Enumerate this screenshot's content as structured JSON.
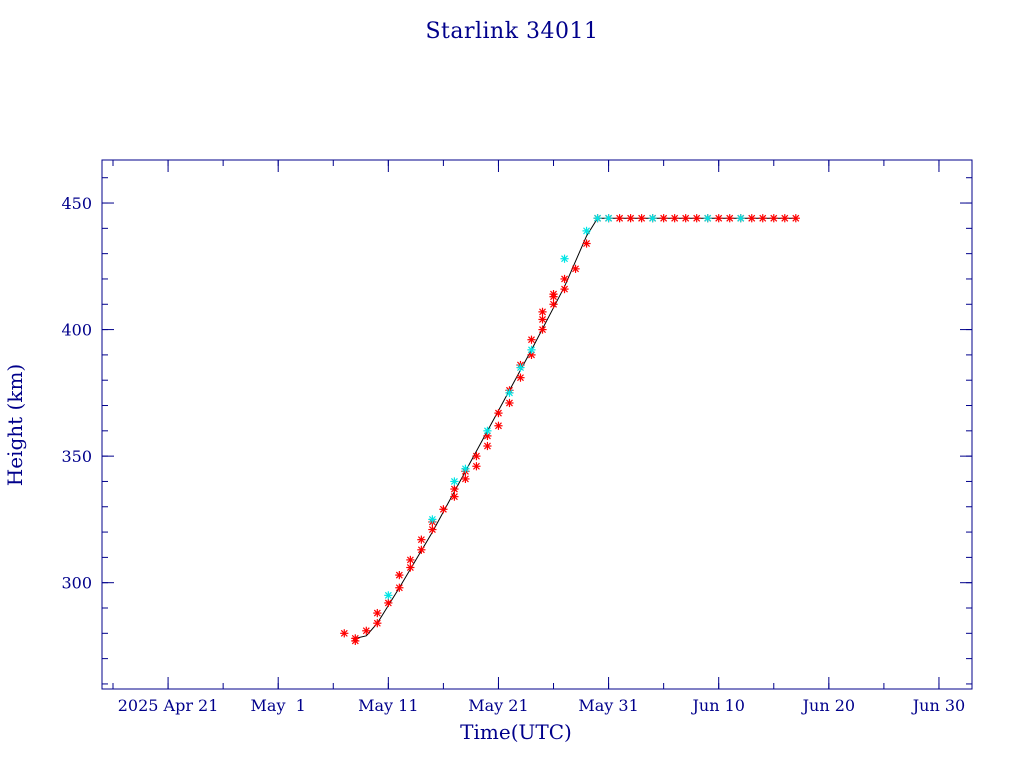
{
  "chart_data": {
    "type": "scatter",
    "title": "Starlink 34011",
    "xlabel": "Time(UTC)",
    "ylabel": "Height (km)",
    "x_axis_type": "date",
    "xlim": [
      "2025-04-15",
      "2025-07-03"
    ],
    "ylim": [
      258,
      467
    ],
    "x_ticks": [
      {
        "date": "2025-04-21",
        "label": "2025 Apr 21"
      },
      {
        "date": "2025-05-01",
        "label": "May  1"
      },
      {
        "date": "2025-05-11",
        "label": "May 11"
      },
      {
        "date": "2025-05-21",
        "label": "May 21"
      },
      {
        "date": "2025-05-31",
        "label": "May 31"
      },
      {
        "date": "2025-06-10",
        "label": "Jun 10"
      },
      {
        "date": "2025-06-20",
        "label": "Jun 20"
      },
      {
        "date": "2025-06-30",
        "label": "Jun 30"
      }
    ],
    "y_ticks": [
      300,
      350,
      400,
      450
    ],
    "grid": false,
    "legend": "none",
    "colors": {
      "text": "#00008b",
      "frame": "#00008b",
      "line": "#000000",
      "marker_primary": "#ff0000",
      "marker_secondary": "#00e5e5"
    },
    "trend_line": {
      "x": [
        "2025-05-08",
        "2025-05-09",
        "2025-05-10",
        "2025-05-11",
        "2025-05-12",
        "2025-05-15",
        "2025-05-18",
        "2025-05-21",
        "2025-05-24",
        "2025-05-27",
        "2025-05-29",
        "2025-05-30",
        "2025-06-17"
      ],
      "y": [
        278,
        279,
        284,
        291,
        298,
        320,
        344,
        368,
        392,
        417,
        437,
        444,
        444
      ]
    },
    "series": [
      {
        "marker": "*",
        "color": "#ff0000",
        "x": [
          "2025-05-07",
          "2025-05-08",
          "2025-05-08",
          "2025-05-09",
          "2025-05-10",
          "2025-05-10",
          "2025-05-11",
          "2025-05-12",
          "2025-05-12",
          "2025-05-13",
          "2025-05-13",
          "2025-05-14",
          "2025-05-14",
          "2025-05-15",
          "2025-05-15",
          "2025-05-16",
          "2025-05-17",
          "2025-05-17",
          "2025-05-18",
          "2025-05-18",
          "2025-05-19",
          "2025-05-19",
          "2025-05-20",
          "2025-05-20",
          "2025-05-21",
          "2025-05-21",
          "2025-05-22",
          "2025-05-22",
          "2025-05-23",
          "2025-05-23",
          "2025-05-24",
          "2025-05-24",
          "2025-05-25",
          "2025-05-25",
          "2025-05-25",
          "2025-05-26",
          "2025-05-26",
          "2025-05-26",
          "2025-05-27",
          "2025-05-27",
          "2025-05-28",
          "2025-05-29",
          "2025-05-30",
          "2025-05-31",
          "2025-06-01",
          "2025-06-02",
          "2025-06-03",
          "2025-06-04",
          "2025-06-05",
          "2025-06-06",
          "2025-06-07",
          "2025-06-08",
          "2025-06-09",
          "2025-06-10",
          "2025-06-11",
          "2025-06-12",
          "2025-06-13",
          "2025-06-14",
          "2025-06-15",
          "2025-06-16",
          "2025-06-17"
        ],
        "y": [
          280,
          278,
          277,
          281,
          284,
          288,
          292,
          298,
          303,
          306,
          309,
          313,
          317,
          321,
          324,
          329,
          334,
          337,
          341,
          344,
          346,
          350,
          354,
          358,
          362,
          367,
          371,
          376,
          381,
          386,
          390,
          396,
          400,
          404,
          407,
          410,
          413,
          414,
          416,
          420,
          424,
          434,
          444,
          444,
          444,
          444,
          444,
          444,
          444,
          444,
          444,
          444,
          444,
          444,
          444,
          444,
          444,
          444,
          444,
          444,
          444
        ]
      },
      {
        "marker": "*",
        "color": "#00e5e5",
        "x": [
          "2025-05-11",
          "2025-05-15",
          "2025-05-17",
          "2025-05-18",
          "2025-05-20",
          "2025-05-22",
          "2025-05-23",
          "2025-05-24",
          "2025-05-27",
          "2025-05-29",
          "2025-05-30",
          "2025-05-31",
          "2025-06-04",
          "2025-06-09",
          "2025-06-12"
        ],
        "y": [
          295,
          325,
          340,
          345,
          360,
          375,
          385,
          392,
          428,
          439,
          444,
          444,
          444,
          444,
          444
        ]
      }
    ]
  }
}
